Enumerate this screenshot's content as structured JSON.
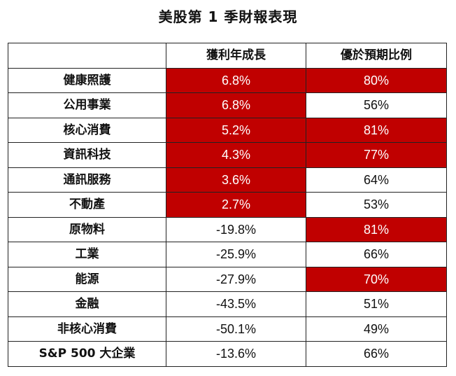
{
  "title": "美股第 1 季財報表現",
  "highlight_color": "#c00000",
  "table": {
    "headers": [
      "",
      "獲利年成長",
      "優於預期比例"
    ],
    "rows": [
      {
        "sector": "健康照護",
        "growth": "6.8%",
        "beat": "80%",
        "growth_hl": true,
        "beat_hl": true
      },
      {
        "sector": "公用事業",
        "growth": "6.8%",
        "beat": "56%",
        "growth_hl": true,
        "beat_hl": false
      },
      {
        "sector": "核心消費",
        "growth": "5.2%",
        "beat": "81%",
        "growth_hl": true,
        "beat_hl": true
      },
      {
        "sector": "資訊科技",
        "growth": "4.3%",
        "beat": "77%",
        "growth_hl": true,
        "beat_hl": true
      },
      {
        "sector": "通訊服務",
        "growth": "3.6%",
        "beat": "64%",
        "growth_hl": true,
        "beat_hl": false
      },
      {
        "sector": "不動產",
        "growth": "2.7%",
        "beat": "53%",
        "growth_hl": true,
        "beat_hl": false
      },
      {
        "sector": "原物料",
        "growth": "-19.8%",
        "beat": "81%",
        "growth_hl": false,
        "beat_hl": true
      },
      {
        "sector": "工業",
        "growth": "-25.9%",
        "beat": "66%",
        "growth_hl": false,
        "beat_hl": false
      },
      {
        "sector": "能源",
        "growth": "-27.9%",
        "beat": "70%",
        "growth_hl": false,
        "beat_hl": true
      },
      {
        "sector": "金融",
        "growth": "-43.5%",
        "beat": "51%",
        "growth_hl": false,
        "beat_hl": false
      },
      {
        "sector": "非核心消費",
        "growth": "-50.1%",
        "beat": "49%",
        "growth_hl": false,
        "beat_hl": false
      },
      {
        "sector": "S&P 500 大企業",
        "growth": "-13.6%",
        "beat": "66%",
        "growth_hl": false,
        "beat_hl": false
      }
    ]
  }
}
